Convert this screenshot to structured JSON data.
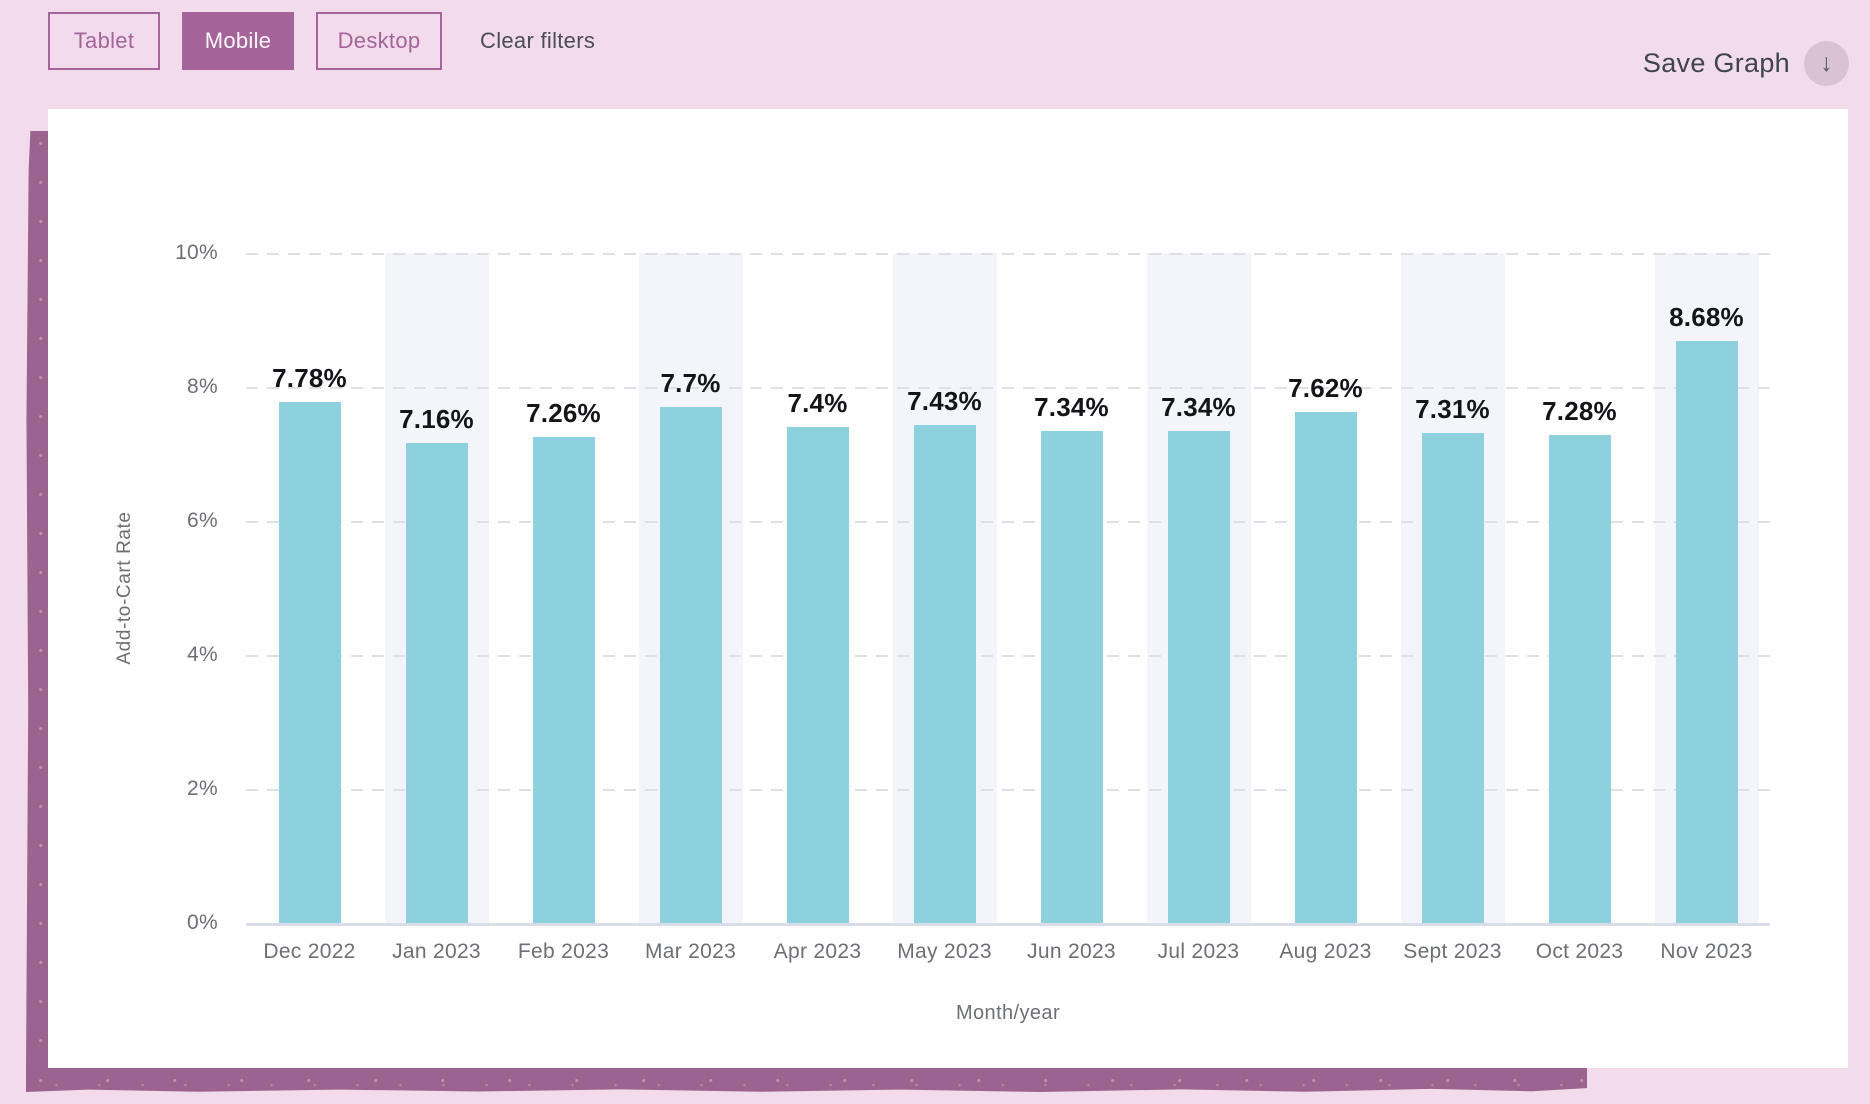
{
  "filter_bar": {
    "buttons": [
      {
        "label": "Tablet",
        "active": false
      },
      {
        "label": "Mobile",
        "active": true
      },
      {
        "label": "Desktop",
        "active": false
      }
    ],
    "clear_label": "Clear filters",
    "save_label": "Save Graph",
    "icons": {
      "download": "↓"
    }
  },
  "colors": {
    "page_bg": "#f2dcec",
    "accent_purple": "#a4649a",
    "brush_purple": "#9d6390",
    "bar_fill": "#8ed1de",
    "stripe_bg": "#f4f5fb",
    "grid_line": "#dfdfe6",
    "baseline": "#d9dde9",
    "axis_text": "#6d6f76",
    "value_text": "#141518"
  },
  "chart_data": {
    "type": "bar",
    "title": "",
    "xlabel": "Month/year",
    "ylabel": "Add-to-Cart Rate",
    "categories": [
      "Dec 2022",
      "Jan 2023",
      "Feb 2023",
      "Mar 2023",
      "Apr 2023",
      "May 2023",
      "Jun 2023",
      "Jul 2023",
      "Aug 2023",
      "Sept 2023",
      "Oct 2023",
      "Nov 2023"
    ],
    "values": [
      7.78,
      7.16,
      7.26,
      7.7,
      7.4,
      7.43,
      7.34,
      7.34,
      7.62,
      7.31,
      7.28,
      8.68
    ],
    "value_labels": [
      "7.78%",
      "7.16%",
      "7.26%",
      "7.7%",
      "7.4%",
      "7.43%",
      "7.34%",
      "7.34%",
      "7.62%",
      "7.31%",
      "7.28%",
      "8.68%"
    ],
    "ylim": [
      0,
      10
    ],
    "ytick_values": [
      0,
      2,
      4,
      6,
      8,
      10
    ],
    "yticks": [
      "0%",
      "2%",
      "4%",
      "6%",
      "8%",
      "10%"
    ],
    "grid": "dashed-horizontal",
    "legend": "none",
    "striped_columns": [
      1,
      3,
      5,
      7,
      9,
      11
    ]
  }
}
